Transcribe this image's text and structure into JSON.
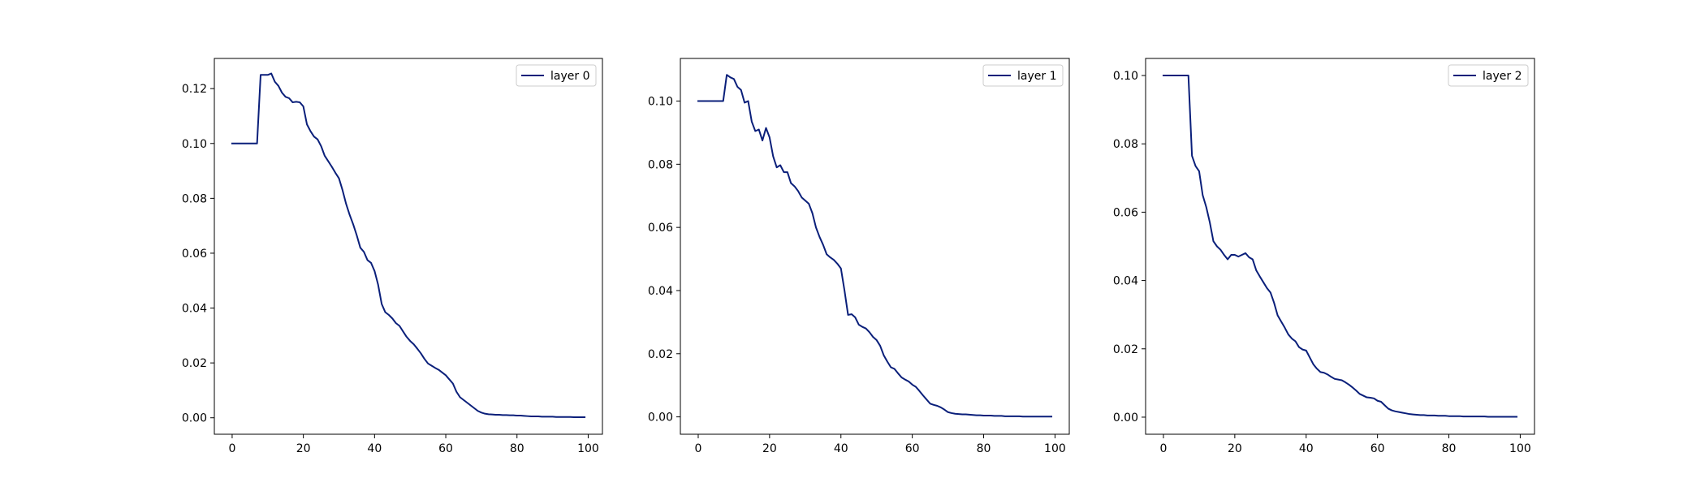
{
  "chart_data": [
    {
      "type": "line",
      "xlim": [
        -5,
        104
      ],
      "ylim": [
        -0.006,
        0.131
      ],
      "xticks": [
        0,
        20,
        40,
        60,
        80,
        100
      ],
      "yticks": [
        0.0,
        0.02,
        0.04,
        0.06,
        0.08,
        0.1,
        0.12
      ],
      "xtick_labels": [
        "0",
        "20",
        "40",
        "60",
        "80",
        "100"
      ],
      "ytick_labels": [
        "0.00",
        "0.02",
        "0.04",
        "0.06",
        "0.08",
        "0.10",
        "0.12"
      ],
      "grid": false,
      "legend": "top-right",
      "series": [
        {
          "name": "layer 0",
          "color": "#0a1f7a",
          "x": [
            0,
            1,
            2,
            3,
            4,
            5,
            6,
            7,
            8,
            9,
            10,
            11,
            12,
            13,
            14,
            15,
            16,
            17,
            18,
            19,
            20,
            21,
            22,
            23,
            24,
            25,
            26,
            27,
            28,
            29,
            30,
            31,
            32,
            33,
            34,
            35,
            36,
            37,
            38,
            39,
            40,
            41,
            42,
            43,
            44,
            45,
            46,
            47,
            48,
            49,
            50,
            51,
            52,
            53,
            54,
            55,
            56,
            57,
            58,
            59,
            60,
            61,
            62,
            63,
            64,
            65,
            66,
            67,
            68,
            69,
            70,
            71,
            72,
            73,
            74,
            75,
            76,
            77,
            78,
            79,
            80,
            81,
            82,
            83,
            84,
            85,
            86,
            87,
            88,
            89,
            90,
            91,
            92,
            93,
            94,
            95,
            96,
            97,
            98,
            99
          ],
          "y": [
            0.1,
            0.1,
            0.1,
            0.1,
            0.1,
            0.1,
            0.1,
            0.1,
            0.125,
            0.125,
            0.125,
            0.1255,
            0.1225,
            0.121,
            0.1185,
            0.117,
            0.1165,
            0.115,
            0.1152,
            0.115,
            0.1135,
            0.107,
            0.1045,
            0.1025,
            0.1015,
            0.099,
            0.0955,
            0.0935,
            0.0915,
            0.0893,
            0.0873,
            0.083,
            0.078,
            0.074,
            0.0705,
            0.0665,
            0.062,
            0.0605,
            0.0575,
            0.0565,
            0.0535,
            0.0485,
            0.0415,
            0.0385,
            0.0375,
            0.0362,
            0.0345,
            0.0335,
            0.0315,
            0.0295,
            0.028,
            0.0268,
            0.0252,
            0.0235,
            0.0215,
            0.0198,
            0.019,
            0.0182,
            0.0175,
            0.0165,
            0.0155,
            0.014,
            0.0125,
            0.0095,
            0.0075,
            0.0065,
            0.0055,
            0.0045,
            0.0035,
            0.0025,
            0.0019,
            0.0015,
            0.0013,
            0.0012,
            0.0011,
            0.0011,
            0.001,
            0.001,
            0.0009,
            0.0009,
            0.0008,
            0.0008,
            0.0007,
            0.0006,
            0.0005,
            0.0005,
            0.0005,
            0.0004,
            0.0004,
            0.0004,
            0.0004,
            0.0003,
            0.0003,
            0.0003,
            0.0003,
            0.0003,
            0.0002,
            0.0002,
            0.0002,
            0.0002
          ]
        }
      ]
    },
    {
      "type": "line",
      "xlim": [
        -5,
        104
      ],
      "ylim": [
        -0.0055,
        0.1135
      ],
      "xticks": [
        0,
        20,
        40,
        60,
        80,
        100
      ],
      "yticks": [
        0.0,
        0.02,
        0.04,
        0.06,
        0.08,
        0.1
      ],
      "xtick_labels": [
        "0",
        "20",
        "40",
        "60",
        "80",
        "100"
      ],
      "ytick_labels": [
        "0.00",
        "0.02",
        "0.04",
        "0.06",
        "0.08",
        "0.10"
      ],
      "grid": false,
      "legend": "top-right",
      "series": [
        {
          "name": "layer 1",
          "color": "#0a1f7a",
          "x": [
            0,
            1,
            2,
            3,
            4,
            5,
            6,
            7,
            8,
            9,
            10,
            11,
            12,
            13,
            14,
            15,
            16,
            17,
            18,
            19,
            20,
            21,
            22,
            23,
            24,
            25,
            26,
            27,
            28,
            29,
            30,
            31,
            32,
            33,
            34,
            35,
            36,
            37,
            38,
            39,
            40,
            41,
            42,
            43,
            44,
            45,
            46,
            47,
            48,
            49,
            50,
            51,
            52,
            53,
            54,
            55,
            56,
            57,
            58,
            59,
            60,
            61,
            62,
            63,
            64,
            65,
            66,
            67,
            68,
            69,
            70,
            71,
            72,
            73,
            74,
            75,
            76,
            77,
            78,
            79,
            80,
            81,
            82,
            83,
            84,
            85,
            86,
            87,
            88,
            89,
            90,
            91,
            92,
            93,
            94,
            95,
            96,
            97,
            98,
            99
          ],
          "y": [
            0.1,
            0.1,
            0.1,
            0.1,
            0.1,
            0.1,
            0.1,
            0.1,
            0.1083,
            0.1075,
            0.107,
            0.1045,
            0.1035,
            0.0995,
            0.1,
            0.0935,
            0.0905,
            0.091,
            0.0875,
            0.0915,
            0.0885,
            0.0825,
            0.079,
            0.0797,
            0.0775,
            0.0775,
            0.074,
            0.073,
            0.0715,
            0.0695,
            0.0685,
            0.0675,
            0.0645,
            0.06,
            0.057,
            0.0545,
            0.0515,
            0.0505,
            0.0497,
            0.0485,
            0.047,
            0.04,
            0.0323,
            0.0325,
            0.0315,
            0.0292,
            0.0285,
            0.028,
            0.0268,
            0.0253,
            0.0243,
            0.0225,
            0.0195,
            0.0175,
            0.0157,
            0.0152,
            0.0138,
            0.0125,
            0.0118,
            0.0112,
            0.0102,
            0.0095,
            0.0082,
            0.0068,
            0.0055,
            0.0042,
            0.0038,
            0.0035,
            0.003,
            0.0023,
            0.0015,
            0.0012,
            0.001,
            0.0009,
            0.0008,
            0.0008,
            0.0007,
            0.0006,
            0.0005,
            0.0005,
            0.0004,
            0.0004,
            0.0004,
            0.0003,
            0.0003,
            0.0003,
            0.0002,
            0.0002,
            0.0002,
            0.0002,
            0.0002,
            0.0001,
            0.0001,
            0.0001,
            0.0001,
            0.0001,
            0.0001,
            0.0001,
            0.0001,
            0.0001
          ]
        }
      ]
    },
    {
      "type": "line",
      "xlim": [
        -5,
        104
      ],
      "ylim": [
        -0.005,
        0.105
      ],
      "xticks": [
        0,
        20,
        40,
        60,
        80,
        100
      ],
      "yticks": [
        0.0,
        0.02,
        0.04,
        0.06,
        0.08,
        0.1
      ],
      "xtick_labels": [
        "0",
        "20",
        "40",
        "60",
        "80",
        "100"
      ],
      "ytick_labels": [
        "0.00",
        "0.02",
        "0.04",
        "0.06",
        "0.08",
        "0.10"
      ],
      "grid": false,
      "legend": "top-right",
      "series": [
        {
          "name": "layer 2",
          "color": "#0a1f7a",
          "x": [
            0,
            1,
            2,
            3,
            4,
            5,
            6,
            7,
            8,
            9,
            10,
            11,
            12,
            13,
            14,
            15,
            16,
            17,
            18,
            19,
            20,
            21,
            22,
            23,
            24,
            25,
            26,
            27,
            28,
            29,
            30,
            31,
            32,
            33,
            34,
            35,
            36,
            37,
            38,
            39,
            40,
            41,
            42,
            43,
            44,
            45,
            46,
            47,
            48,
            49,
            50,
            51,
            52,
            53,
            54,
            55,
            56,
            57,
            58,
            59,
            60,
            61,
            62,
            63,
            64,
            65,
            66,
            67,
            68,
            69,
            70,
            71,
            72,
            73,
            74,
            75,
            76,
            77,
            78,
            79,
            80,
            81,
            82,
            83,
            84,
            85,
            86,
            87,
            88,
            89,
            90,
            91,
            92,
            93,
            94,
            95,
            96,
            97,
            98,
            99
          ],
          "y": [
            0.1,
            0.1,
            0.1,
            0.1,
            0.1,
            0.1,
            0.1,
            0.1,
            0.0765,
            0.0735,
            0.072,
            0.065,
            0.0615,
            0.057,
            0.0515,
            0.05,
            0.049,
            0.0475,
            0.0462,
            0.0475,
            0.0475,
            0.047,
            0.0475,
            0.048,
            0.0468,
            0.0462,
            0.043,
            0.0412,
            0.0395,
            0.0378,
            0.0365,
            0.0335,
            0.0298,
            0.028,
            0.0262,
            0.0242,
            0.023,
            0.0222,
            0.0205,
            0.0198,
            0.0195,
            0.0175,
            0.0155,
            0.0142,
            0.0132,
            0.013,
            0.0125,
            0.0118,
            0.0112,
            0.011,
            0.0108,
            0.0102,
            0.0095,
            0.0087,
            0.0078,
            0.0068,
            0.0063,
            0.0058,
            0.0057,
            0.0055,
            0.0048,
            0.0045,
            0.0035,
            0.0025,
            0.002,
            0.0017,
            0.0015,
            0.0013,
            0.0011,
            0.0009,
            0.0008,
            0.0007,
            0.0006,
            0.0006,
            0.0005,
            0.0005,
            0.0005,
            0.0004,
            0.0004,
            0.0004,
            0.0003,
            0.0003,
            0.0003,
            0.0003,
            0.0002,
            0.0002,
            0.0002,
            0.0002,
            0.0002,
            0.0002,
            0.0002,
            0.0001,
            0.0001,
            0.0001,
            0.0001,
            0.0001,
            0.0001,
            0.0001,
            0.0001,
            0.0001
          ]
        }
      ]
    }
  ]
}
